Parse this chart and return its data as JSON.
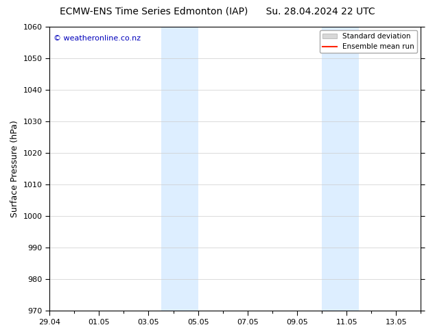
{
  "title": "ECMW-ENS Time Series Edmonton (IAP)      Su. 28.04.2024 22 UTC",
  "ylabel": "Surface Pressure (hPa)",
  "watermark": "© weatheronline.co.nz",
  "watermark_color": "#0000bb",
  "ylim": [
    970,
    1060
  ],
  "yticks": [
    970,
    980,
    990,
    1000,
    1010,
    1020,
    1030,
    1040,
    1050,
    1060
  ],
  "xlim_start": 0.0,
  "xlim_end": 15.0,
  "xtick_labels": [
    "29.04",
    "01.05",
    "03.05",
    "05.05",
    "07.05",
    "09.05",
    "11.05",
    "13.05"
  ],
  "xtick_positions": [
    0,
    2,
    4,
    6,
    8,
    10,
    12,
    14
  ],
  "shaded_bands": [
    {
      "x_start": 4.5,
      "x_end": 6.0
    },
    {
      "x_start": 11.0,
      "x_end": 12.5
    }
  ],
  "shaded_color": "#ddeeff",
  "legend_std_label": "Standard deviation",
  "legend_mean_label": "Ensemble mean run",
  "legend_std_color": "#d8d8d8",
  "legend_mean_color": "#ff2200",
  "bg_color": "#ffffff",
  "grid_color": "#cccccc",
  "title_fontsize": 10,
  "axis_fontsize": 9,
  "tick_fontsize": 8
}
